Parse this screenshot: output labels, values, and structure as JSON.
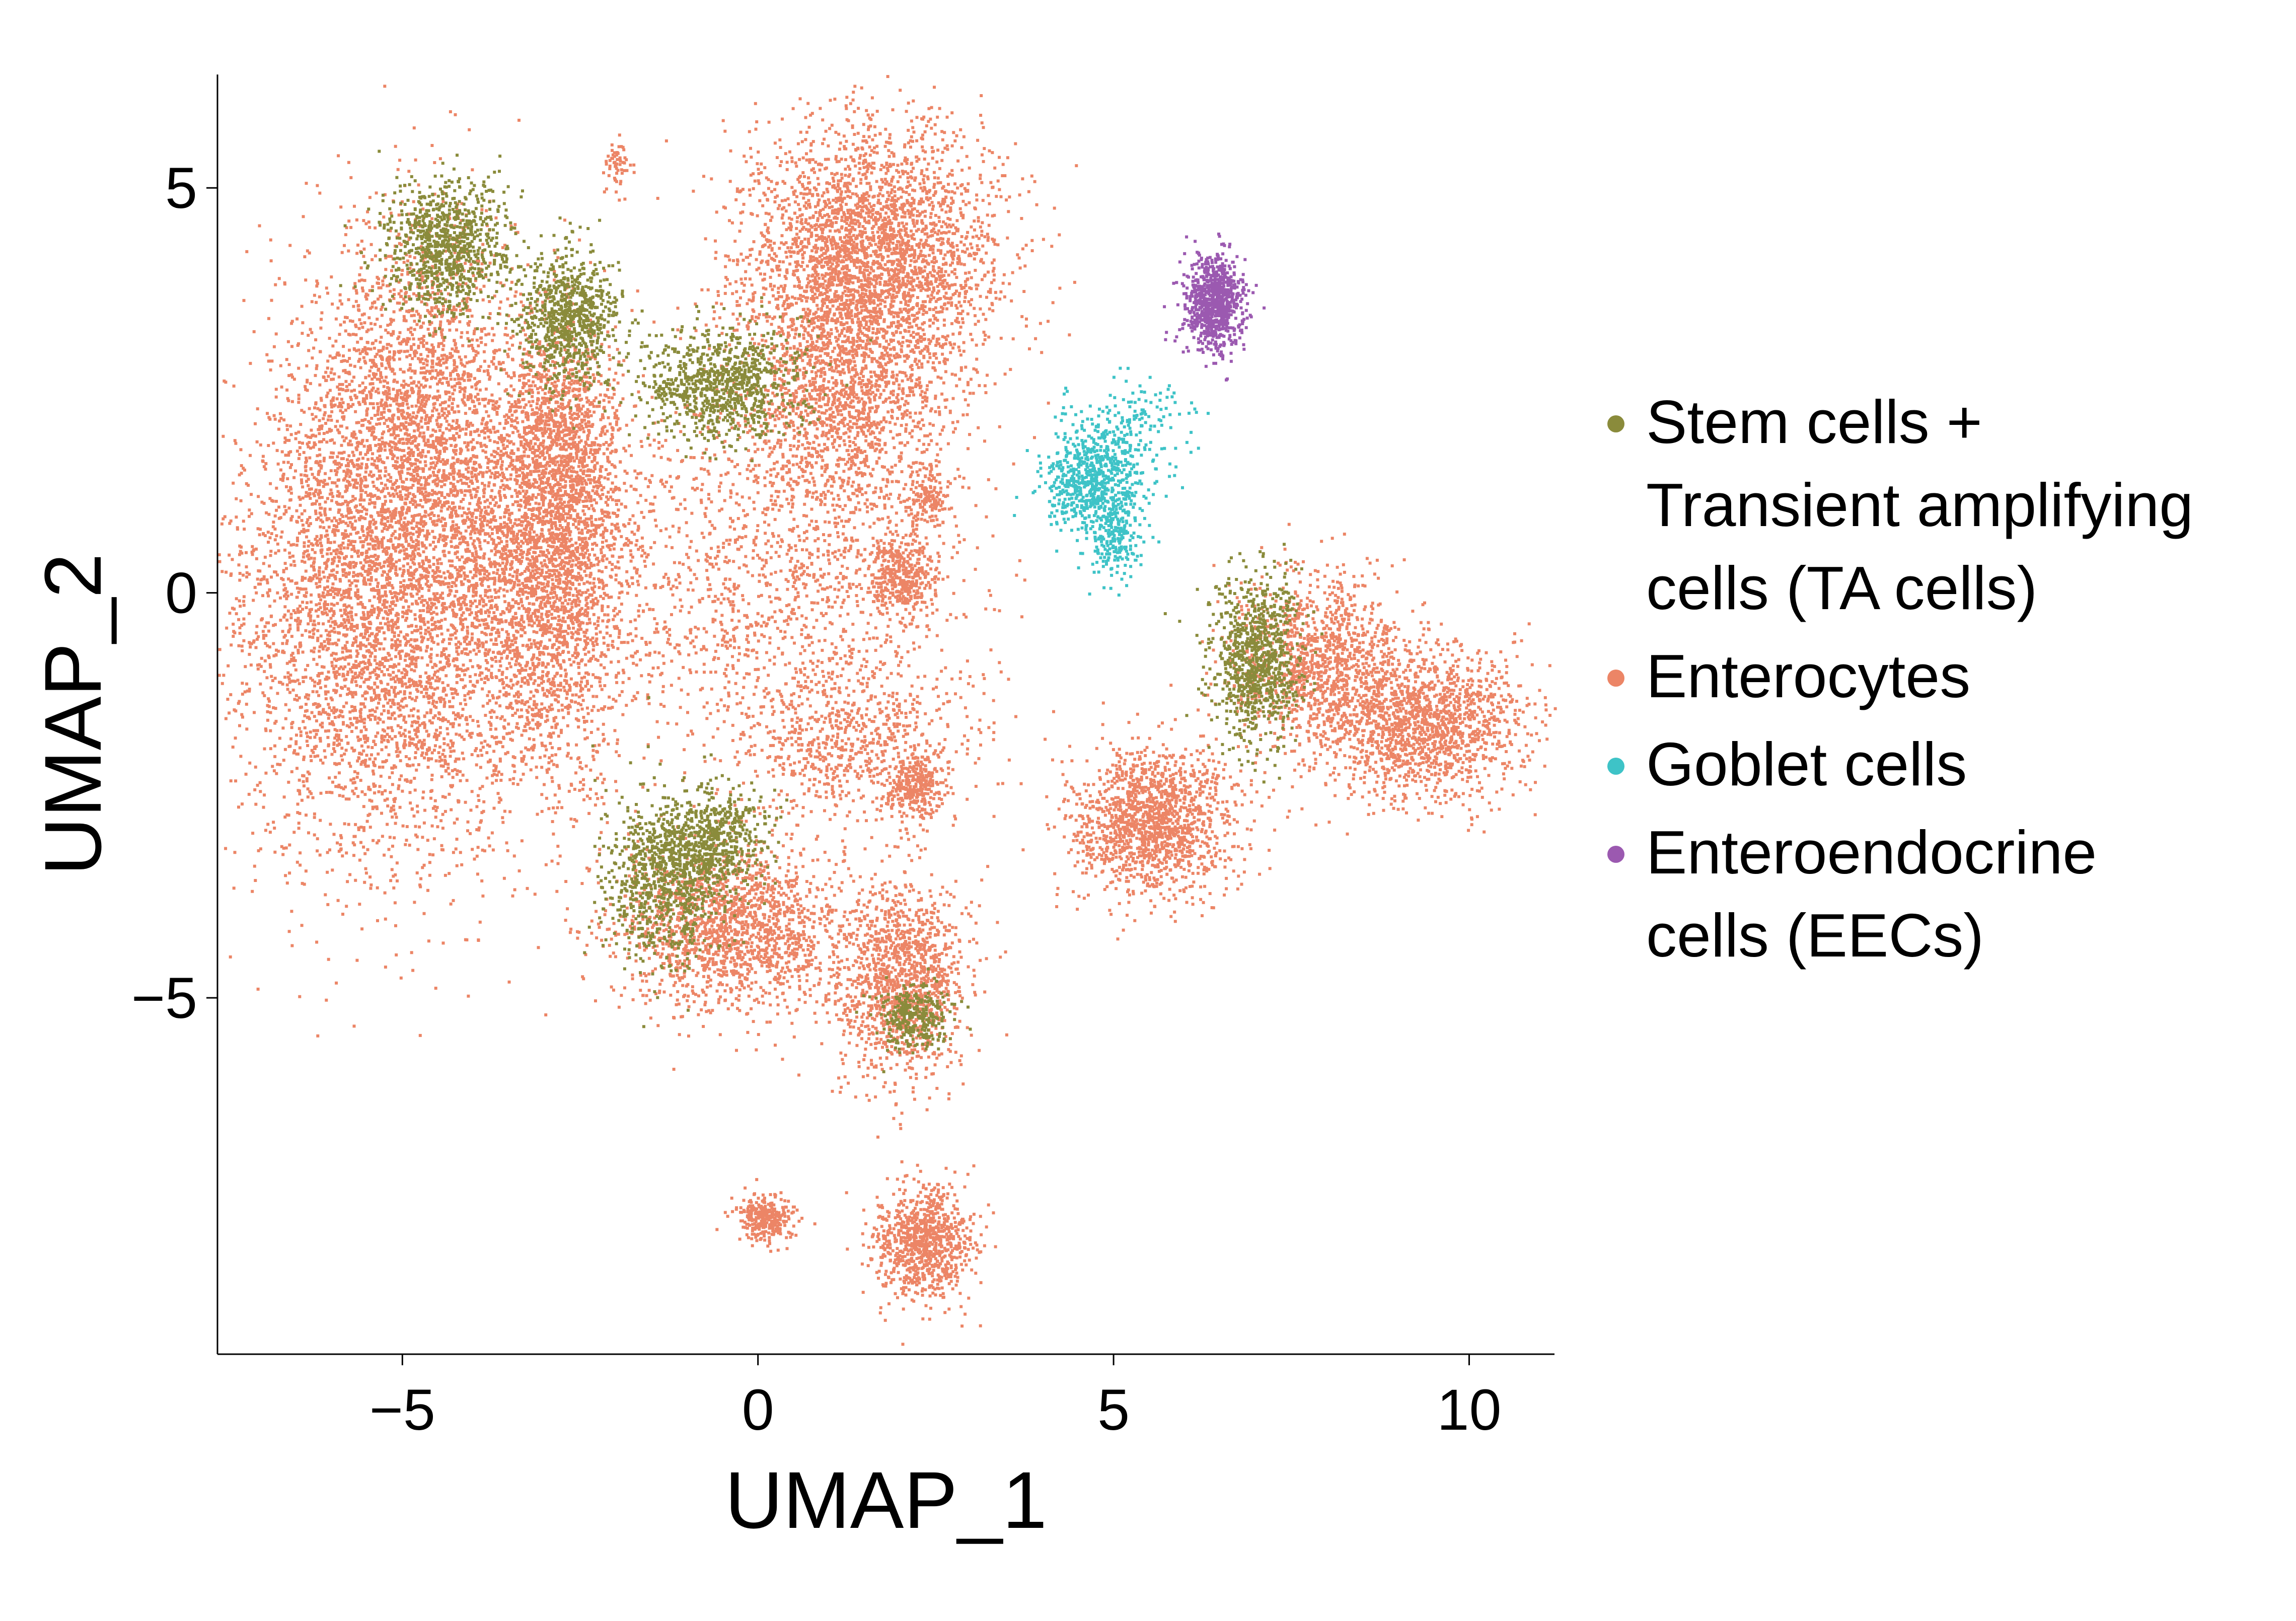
{
  "chart_data": {
    "type": "scatter",
    "xlabel": "UMAP_1",
    "ylabel": "UMAP_2",
    "xlim": [
      -7.6,
      11.2
    ],
    "ylim": [
      -9.4,
      6.4
    ],
    "x_ticks": [
      -5,
      0,
      5,
      10
    ],
    "y_ticks": [
      -5,
      0,
      5
    ],
    "x_tick_labels": [
      "−5",
      "0",
      "5",
      "10"
    ],
    "y_tick_labels": [
      "−5",
      "0",
      "5"
    ],
    "grid": false,
    "legend_position": "right",
    "legend": [
      {
        "label_lines": [
          "Stem cells +",
          "Transient amplifying",
          "cells (TA cells)"
        ],
        "color": "#8a8b3b"
      },
      {
        "label_lines": [
          "Enterocytes"
        ],
        "color": "#ec8566"
      },
      {
        "label_lines": [
          "Goblet cells"
        ],
        "color": "#3ec3c7"
      },
      {
        "label_lines": [
          "Enteroendocrine",
          "cells (EECs)"
        ],
        "color": "#9b59b0"
      }
    ],
    "series": [
      {
        "name": "Stem cells + Transient amplifying cells (TA cells)",
        "color": "#8a8b3b",
        "clusters": [
          {
            "cx": -4.4,
            "cy": 4.3,
            "sx": 0.45,
            "sy": 0.4,
            "n": 900
          },
          {
            "cx": -2.7,
            "cy": 3.4,
            "sx": 0.35,
            "sy": 0.4,
            "n": 800
          },
          {
            "cx": -0.5,
            "cy": 2.6,
            "sx": 0.55,
            "sy": 0.35,
            "n": 900
          },
          {
            "cx": -1.3,
            "cy": -3.5,
            "sx": 0.4,
            "sy": 0.5,
            "n": 900
          },
          {
            "cx": -0.6,
            "cy": -3.0,
            "sx": 0.35,
            "sy": 0.3,
            "n": 500
          },
          {
            "cx": 2.2,
            "cy": -5.2,
            "sx": 0.25,
            "sy": 0.2,
            "n": 300
          },
          {
            "cx": 7.0,
            "cy": -0.8,
            "sx": 0.3,
            "sy": 0.5,
            "n": 900
          }
        ]
      },
      {
        "name": "Enterocytes",
        "color": "#ec8566",
        "clusters": [
          {
            "cx": -5.2,
            "cy": 0.0,
            "sx": 1.1,
            "sy": 1.6,
            "n": 5200
          },
          {
            "cx": -4.8,
            "cy": 2.5,
            "sx": 0.7,
            "sy": 1.2,
            "n": 1500
          },
          {
            "cx": -2.9,
            "cy": 0.4,
            "sx": 0.55,
            "sy": 1.3,
            "n": 2600
          },
          {
            "cx": -2.8,
            "cy": 2.0,
            "sx": 0.4,
            "sy": 0.6,
            "n": 700
          },
          {
            "cx": 1.6,
            "cy": 4.2,
            "sx": 0.9,
            "sy": 0.8,
            "n": 3000
          },
          {
            "cx": 1.2,
            "cy": 2.5,
            "sx": 0.7,
            "sy": 0.8,
            "n": 1500
          },
          {
            "cx": 0.2,
            "cy": 0.2,
            "sx": 1.3,
            "sy": 1.2,
            "n": 1400
          },
          {
            "cx": 2.0,
            "cy": 0.2,
            "sx": 0.25,
            "sy": 0.25,
            "n": 400
          },
          {
            "cx": 2.4,
            "cy": 1.2,
            "sx": 0.15,
            "sy": 0.2,
            "n": 150
          },
          {
            "cx": 1.3,
            "cy": -1.8,
            "sx": 0.8,
            "sy": 0.5,
            "n": 700
          },
          {
            "cx": 2.2,
            "cy": -2.4,
            "sx": 0.2,
            "sy": 0.2,
            "n": 300
          },
          {
            "cx": -0.4,
            "cy": -4.1,
            "sx": 0.8,
            "sy": 0.5,
            "n": 1700
          },
          {
            "cx": 2.0,
            "cy": -4.8,
            "sx": 0.45,
            "sy": 0.6,
            "n": 1300
          },
          {
            "cx": 0.1,
            "cy": -7.7,
            "sx": 0.2,
            "sy": 0.15,
            "n": 300
          },
          {
            "cx": 2.3,
            "cy": -8.0,
            "sx": 0.35,
            "sy": 0.35,
            "n": 900
          },
          {
            "cx": 5.5,
            "cy": -2.8,
            "sx": 0.55,
            "sy": 0.45,
            "n": 1500
          },
          {
            "cx": 9.3,
            "cy": -1.6,
            "sx": 0.7,
            "sy": 0.45,
            "n": 1600
          },
          {
            "cx": 7.8,
            "cy": -0.8,
            "sx": 0.6,
            "sy": 0.55,
            "n": 1100
          },
          {
            "cx": -2.0,
            "cy": 5.3,
            "sx": 0.08,
            "sy": 0.15,
            "n": 60
          }
        ]
      },
      {
        "name": "Goblet cells",
        "color": "#3ec3c7",
        "clusters": [
          {
            "cx": 4.7,
            "cy": 1.4,
            "sx": 0.35,
            "sy": 0.35,
            "n": 700
          },
          {
            "cx": 5.0,
            "cy": 0.7,
            "sx": 0.2,
            "sy": 0.25,
            "n": 200
          },
          {
            "cx": 5.3,
            "cy": 2.1,
            "sx": 0.4,
            "sy": 0.3,
            "n": 150
          }
        ]
      },
      {
        "name": "Enteroendocrine cells (EECs)",
        "color": "#9b59b0",
        "clusters": [
          {
            "cx": 6.4,
            "cy": 3.6,
            "sx": 0.2,
            "sy": 0.28,
            "n": 900
          }
        ]
      }
    ]
  }
}
